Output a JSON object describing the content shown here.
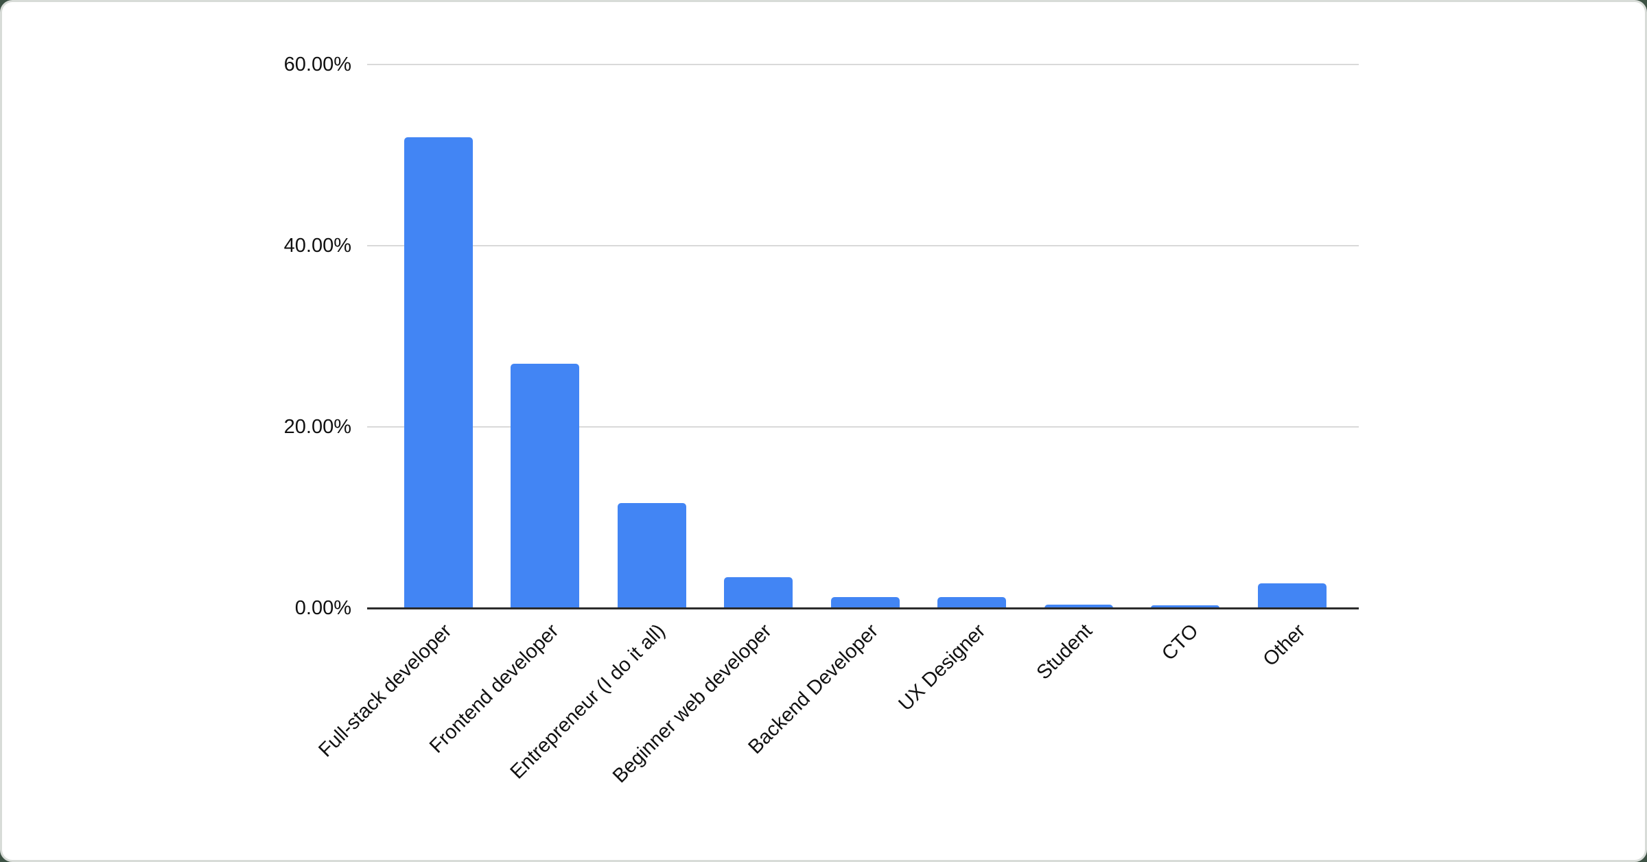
{
  "page": {
    "background_color": "#3d5244",
    "card_color": "#ffffff",
    "card_border_color": "#d8dcd8"
  },
  "chart_data": {
    "type": "bar",
    "title": "",
    "xlabel": "",
    "ylabel": "",
    "categories": [
      "Full-stack developer",
      "Frontend developer",
      "Entrepreneur (I do it all)",
      "Beginner web developer",
      "Backend Developer",
      "UX Designer",
      "Student",
      "CTO",
      "Other"
    ],
    "values": [
      52,
      27,
      11.6,
      3.4,
      1.2,
      1.2,
      0.4,
      0.3,
      2.7
    ],
    "value_unit": "%",
    "ylim": [
      0,
      60
    ],
    "yticks": [
      {
        "label": "0.00%",
        "value": 0
      },
      {
        "label": "20.00%",
        "value": 20
      },
      {
        "label": "40.00%",
        "value": 40
      },
      {
        "label": "60.00%",
        "value": 60
      }
    ],
    "grid": true,
    "legend_position": "none",
    "bar_color": "#4285f4",
    "axis_line_color": "#2b2b2b",
    "gridline_color": "#d9d9d9",
    "tick_label_color": "#111111"
  }
}
